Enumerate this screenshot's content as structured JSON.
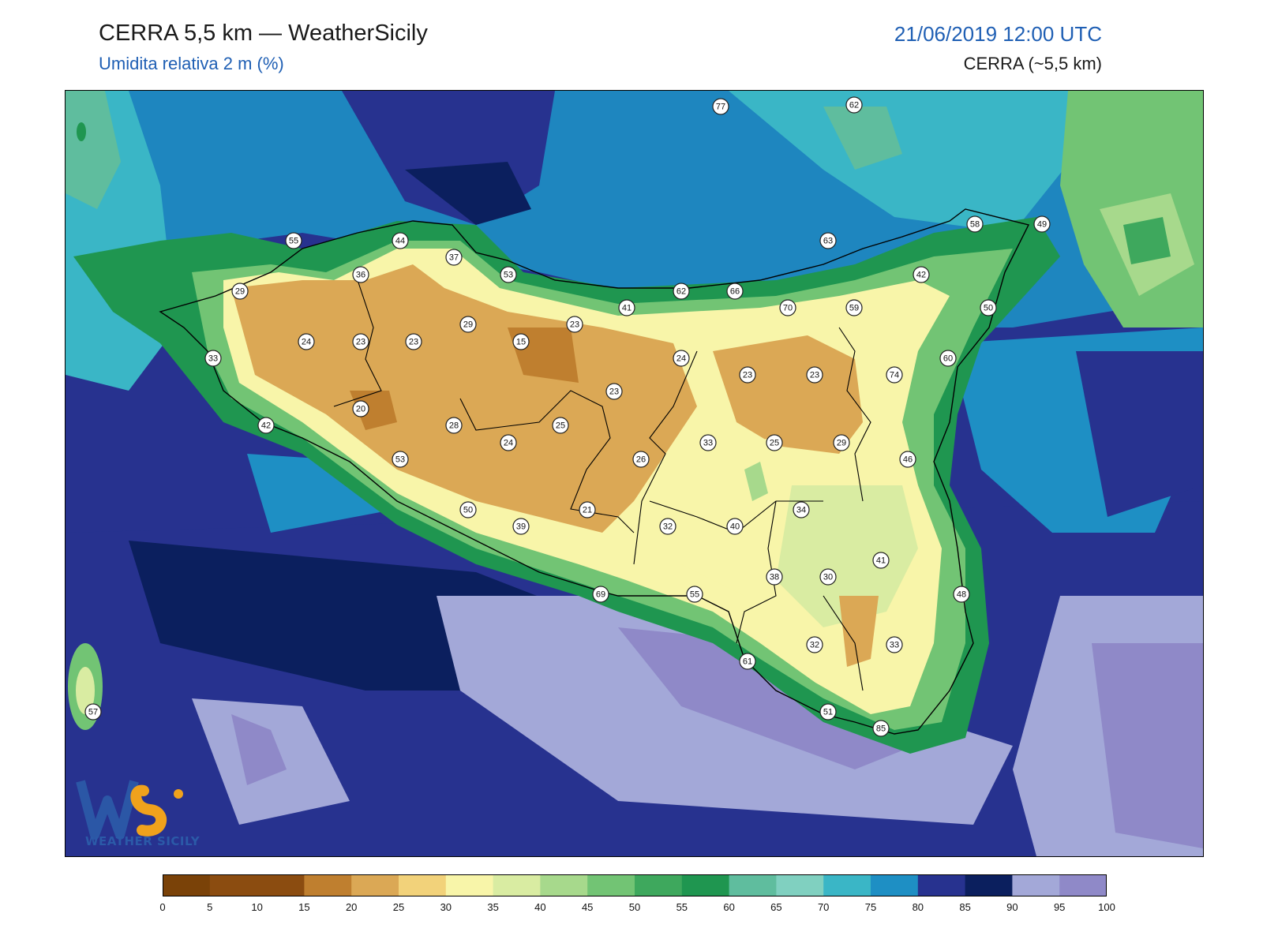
{
  "header": {
    "title": "CERRA 5,5 km — WeatherSicily",
    "subtitle": "Umidita relativa 2 m (%)",
    "date": "21/06/2019 12:00 UTC",
    "model": "CERRA (~5,5 km)"
  },
  "logo": {
    "text": "WEATHER SICILY",
    "letters": "WS"
  },
  "legend": {
    "ticks": [
      "0",
      "5",
      "10",
      "15",
      "20",
      "25",
      "30",
      "35",
      "40",
      "45",
      "50",
      "55",
      "60",
      "65",
      "70",
      "75",
      "80",
      "85",
      "90",
      "95",
      "100"
    ],
    "colors": [
      "#7a4208",
      "#8b4c10",
      "#8b4c10",
      "#bf7f2f",
      "#dba855",
      "#f2d27a",
      "#f8f5a9",
      "#d9eca2",
      "#a7d98c",
      "#72c474",
      "#3ea85d",
      "#1f9650",
      "#5fbd9e",
      "#80d0c0",
      "#3ab6c6",
      "#1e8fc4",
      "#27328f",
      "#0b1f5e",
      "#a3a8d8",
      "#8f89c8"
    ]
  },
  "stations": [
    {
      "v": "77"
    },
    {
      "v": "62"
    },
    {
      "v": "55"
    },
    {
      "v": "44"
    },
    {
      "v": "37"
    },
    {
      "v": "53"
    },
    {
      "v": "36"
    },
    {
      "v": "29"
    },
    {
      "v": "63"
    },
    {
      "v": "58"
    },
    {
      "v": "49"
    },
    {
      "v": "42"
    },
    {
      "v": "62"
    },
    {
      "v": "66"
    },
    {
      "v": "70"
    },
    {
      "v": "59"
    },
    {
      "v": "41"
    },
    {
      "v": "50"
    },
    {
      "v": "24"
    },
    {
      "v": "23"
    },
    {
      "v": "23"
    },
    {
      "v": "29"
    },
    {
      "v": "15"
    },
    {
      "v": "23"
    },
    {
      "v": "33"
    },
    {
      "v": "24"
    },
    {
      "v": "23"
    },
    {
      "v": "23"
    },
    {
      "v": "74"
    },
    {
      "v": "60"
    },
    {
      "v": "20"
    },
    {
      "v": "23"
    },
    {
      "v": "42"
    },
    {
      "v": "28"
    },
    {
      "v": "25"
    },
    {
      "v": "24"
    },
    {
      "v": "33"
    },
    {
      "v": "25"
    },
    {
      "v": "29"
    },
    {
      "v": "53"
    },
    {
      "v": "26"
    },
    {
      "v": "46"
    },
    {
      "v": "50"
    },
    {
      "v": "21"
    },
    {
      "v": "39"
    },
    {
      "v": "32"
    },
    {
      "v": "40"
    },
    {
      "v": "34"
    },
    {
      "v": "41"
    },
    {
      "v": "38"
    },
    {
      "v": "30"
    },
    {
      "v": "69"
    },
    {
      "v": "55"
    },
    {
      "v": "48"
    },
    {
      "v": "32"
    },
    {
      "v": "33"
    },
    {
      "v": "61"
    },
    {
      "v": "57"
    },
    {
      "v": "51"
    },
    {
      "v": "85"
    }
  ]
}
